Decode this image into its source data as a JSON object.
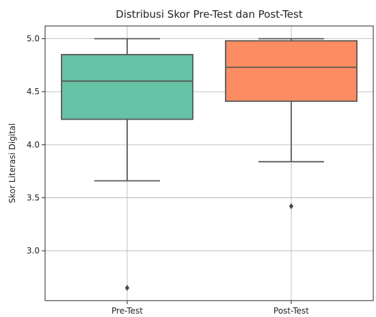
{
  "chart_data": {
    "type": "box",
    "title": "Distribusi Skor Pre-Test dan Post-Test",
    "xlabel": "",
    "ylabel": "Skor Literasi Digital",
    "ylim": [
      2.53,
      5.12
    ],
    "yticks": [
      "3.0",
      "3.5",
      "4.0",
      "4.5",
      "5.0"
    ],
    "grid": true,
    "categories": [
      "Pre-Test",
      "Post-Test"
    ],
    "boxes": [
      {
        "name": "Pre-Test",
        "color": "#66c2a5",
        "whisker_low": 3.66,
        "q1": 4.24,
        "median": 4.6,
        "q3": 4.85,
        "whisker_high": 5.0,
        "outliers": [
          2.65
        ]
      },
      {
        "name": "Post-Test",
        "color": "#fc8d62",
        "whisker_low": 3.84,
        "q1": 4.41,
        "median": 4.73,
        "q3": 4.98,
        "whisker_high": 5.0,
        "outliers": [
          3.42
        ]
      }
    ]
  }
}
